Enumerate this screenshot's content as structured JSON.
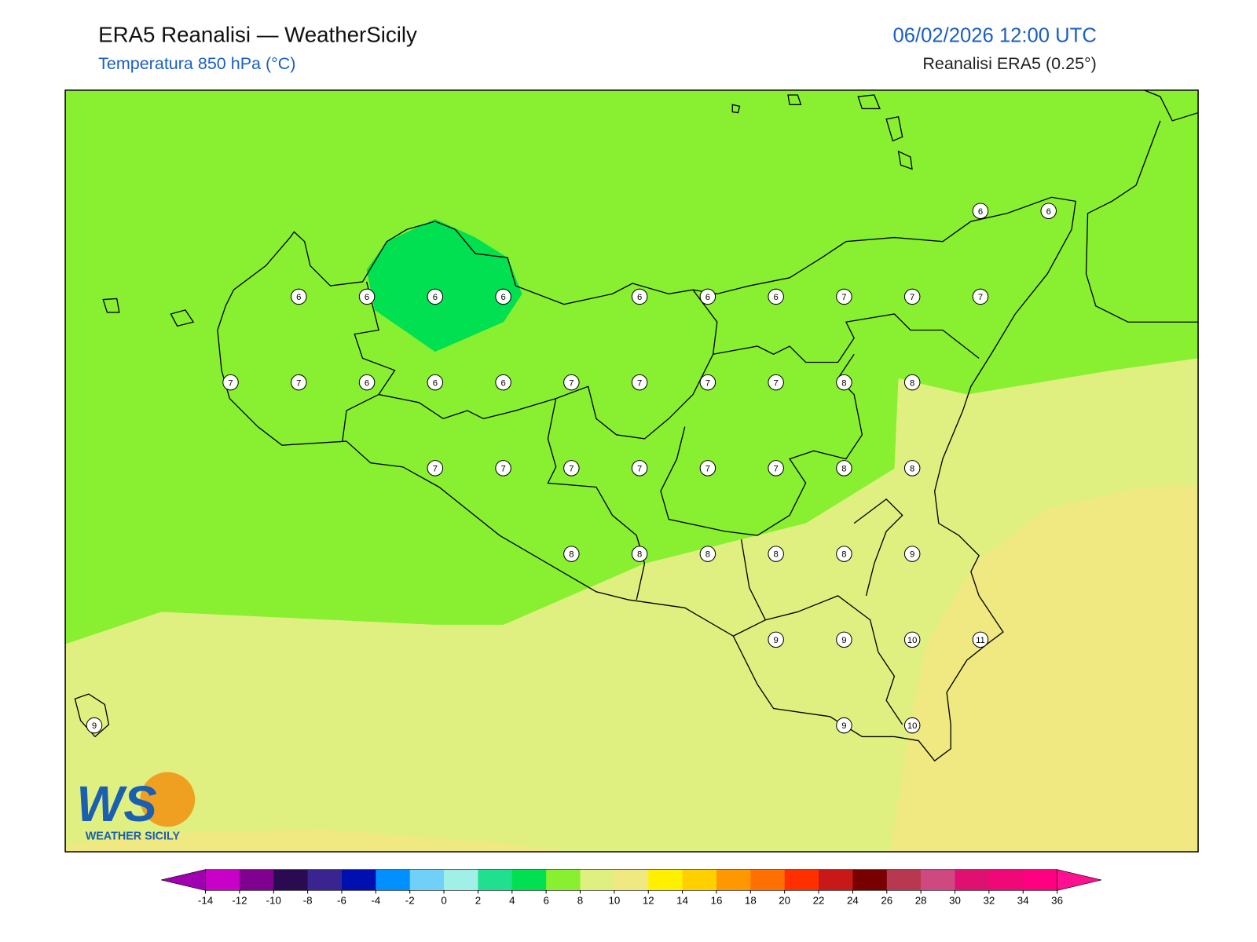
{
  "header": {
    "title": "ERA5 Reanalisi — WeatherSicily",
    "subtitle": "Temperatura 850 hPa (°C)",
    "datetime": "06/02/2026 12:00 UTC",
    "source": "Reanalisi ERA5 (0.25°)"
  },
  "stations": [
    [
      null,
      null,
      null,
      null,
      null,
      null,
      null,
      null,
      null,
      null,
      null,
      null,
      null,
      6,
      6
    ],
    [
      null,
      null,
      null,
      6,
      6,
      6,
      6,
      null,
      6,
      6,
      6,
      7,
      7,
      7,
      null
    ],
    [
      null,
      null,
      7,
      7,
      6,
      6,
      6,
      7,
      7,
      7,
      7,
      8,
      8,
      null,
      null
    ],
    [
      null,
      null,
      null,
      null,
      null,
      7,
      7,
      7,
      7,
      7,
      7,
      8,
      8,
      null,
      null
    ],
    [
      null,
      null,
      null,
      null,
      null,
      null,
      null,
      8,
      8,
      8,
      8,
      8,
      9,
      null,
      null
    ],
    [
      null,
      null,
      null,
      null,
      null,
      null,
      null,
      null,
      null,
      null,
      9,
      9,
      10,
      11,
      null
    ],
    [
      9,
      null,
      null,
      null,
      null,
      null,
      null,
      null,
      null,
      null,
      null,
      9,
      10,
      null,
      null
    ]
  ],
  "colorbar": {
    "ticks": [
      -14,
      -12,
      -10,
      -8,
      -6,
      -4,
      -2,
      0,
      2,
      4,
      6,
      8,
      10,
      12,
      14,
      16,
      18,
      20,
      22,
      24,
      26,
      28,
      30,
      32,
      34,
      36
    ],
    "colors": [
      "#c800c8",
      "#800090",
      "#2a0a50",
      "#3a2590",
      "#0010b0",
      "#0090ff",
      "#70d0f8",
      "#a0f0e8",
      "#20e090",
      "#00e050",
      "#88f030",
      "#e0f080",
      "#f0e880",
      "#fff000",
      "#ffd000",
      "#ff9800",
      "#ff7000",
      "#ff3000",
      "#c81818",
      "#780000",
      "#b83850",
      "#d04880",
      "#e01070",
      "#f00878",
      "#ff0080"
    ],
    "under_color": "#a000b0",
    "over_color": "#ff1090"
  },
  "logo": {
    "mark": "WS",
    "text": "WEATHER SICILY"
  }
}
